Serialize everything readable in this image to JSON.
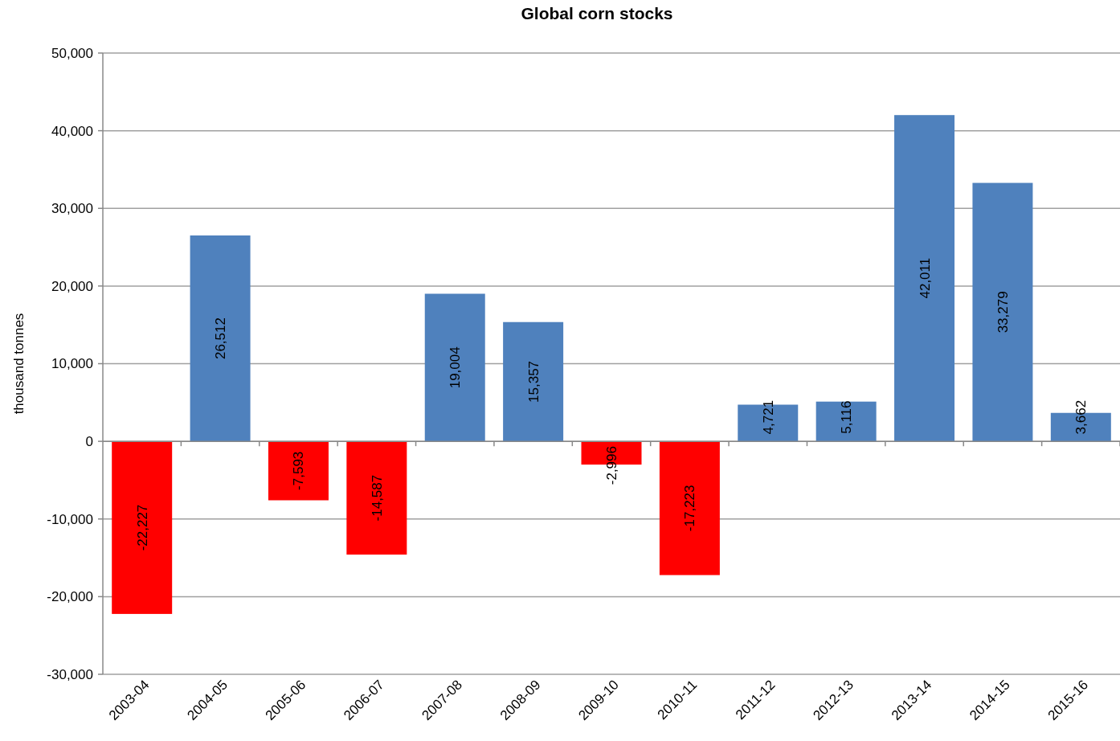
{
  "chart_data": {
    "type": "bar",
    "title": "Global corn stocks",
    "ylabel": "thousand tonnes",
    "categories": [
      "2003-04",
      "2004-05",
      "2005-06",
      "2006-07",
      "2007-08",
      "2008-09",
      "2009-10",
      "2010-11",
      "2011-12",
      "2012-13",
      "2013-14",
      "2014-15",
      "2015-16"
    ],
    "values": [
      -22227,
      26512,
      -7593,
      -14587,
      19004,
      15357,
      -2996,
      -17223,
      4721,
      5116,
      42011,
      33279,
      3662
    ],
    "colors": [
      "#ff0000",
      "#4f81bd",
      "#ff0000",
      "#ff0000",
      "#4f81bd",
      "#4f81bd",
      "#ff0000",
      "#ff0000",
      "#4f81bd",
      "#4f81bd",
      "#4f81bd",
      "#4f81bd",
      "#4f81bd"
    ],
    "ylim": [
      -30000,
      50000
    ],
    "yticks": [
      {
        "value": -30000,
        "label": "-30,000"
      },
      {
        "value": -20000,
        "label": "-20,000"
      },
      {
        "value": -10000,
        "label": "-10,000"
      },
      0,
      {
        "value": 10000,
        "label": "10,000"
      },
      {
        "value": 20000,
        "label": "20,000"
      },
      {
        "value": 30000,
        "label": "30,000"
      },
      {
        "value": 40000,
        "label": "40,000"
      },
      {
        "value": 50000,
        "label": "50,000"
      }
    ],
    "value_labels": [
      "-22,227",
      "26,512",
      "-7,593",
      "-14,587",
      "19,004",
      "15,357",
      "-2,996",
      "-17,223",
      "4,721",
      "5,116",
      "42,011",
      "33,279",
      "3,662"
    ],
    "grid": "y"
  }
}
